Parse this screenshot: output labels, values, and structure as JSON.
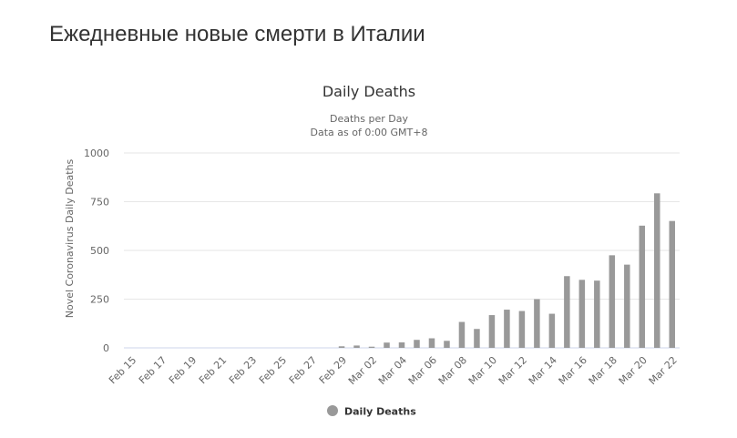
{
  "page": {
    "heading": "Ежедневные новые смерти в Италии"
  },
  "chart_data": {
    "type": "bar",
    "title": "Daily Deaths",
    "subtitle": [
      "Deaths per Day",
      "Data as of 0:00 GMT+8"
    ],
    "xlabel": "",
    "ylabel": "Novel Coronavirus Daily Deaths",
    "ylim": [
      0,
      1000
    ],
    "yticks": [
      0,
      250,
      500,
      750,
      1000
    ],
    "grid": true,
    "legend_position": "bottom-center",
    "bar_color": "#999999",
    "grid_color": "#e6e6e6",
    "baseline_color": "#ccd6eb",
    "categories": [
      "Feb 15",
      "Feb 16",
      "Feb 17",
      "Feb 18",
      "Feb 19",
      "Feb 20",
      "Feb 21",
      "Feb 22",
      "Feb 23",
      "Feb 24",
      "Feb 25",
      "Feb 26",
      "Feb 27",
      "Feb 28",
      "Feb 29",
      "Mar 01",
      "Mar 02",
      "Mar 03",
      "Mar 04",
      "Mar 05",
      "Mar 06",
      "Mar 07",
      "Mar 08",
      "Mar 09",
      "Mar 10",
      "Mar 11",
      "Mar 12",
      "Mar 13",
      "Mar 14",
      "Mar 15",
      "Mar 16",
      "Mar 17",
      "Mar 18",
      "Mar 19",
      "Mar 20",
      "Mar 21",
      "Mar 22"
    ],
    "x_tick_labels": [
      "Feb 15",
      "Feb 17",
      "Feb 19",
      "Feb 21",
      "Feb 23",
      "Feb 25",
      "Feb 27",
      "Feb 29",
      "Mar 02",
      "Mar 04",
      "Mar 06",
      "Mar 08",
      "Mar 10",
      "Mar 12",
      "Mar 14",
      "Mar 16",
      "Mar 18",
      "Mar 20",
      "Mar 22"
    ],
    "series": [
      {
        "name": "Daily Deaths",
        "values": [
          0,
          0,
          0,
          0,
          0,
          0,
          0,
          0,
          0,
          0,
          0,
          0,
          0,
          0,
          8,
          12,
          6,
          27,
          28,
          41,
          49,
          36,
          133,
          97,
          168,
          196,
          189,
          250,
          175,
          368,
          349,
          345,
          475,
          427,
          627,
          793,
          651
        ]
      }
    ]
  }
}
